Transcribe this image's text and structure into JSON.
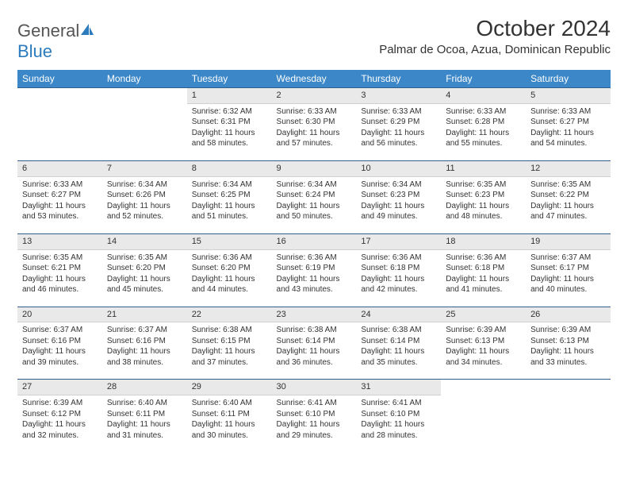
{
  "brand": {
    "name_part1": "General",
    "name_part2": "Blue"
  },
  "title": "October 2024",
  "location": "Palmar de Ocoa, Azua, Dominican Republic",
  "colors": {
    "header_bg": "#3b87c8",
    "header_text": "#ffffff",
    "daynum_bg": "#e9e9e9",
    "row_border": "#2f5f8a",
    "logo_blue": "#2b7bbd"
  },
  "weekdays": [
    "Sunday",
    "Monday",
    "Tuesday",
    "Wednesday",
    "Thursday",
    "Friday",
    "Saturday"
  ],
  "weeks": [
    [
      null,
      null,
      {
        "n": "1",
        "sunrise": "6:32 AM",
        "sunset": "6:31 PM",
        "daylight": "11 hours and 58 minutes."
      },
      {
        "n": "2",
        "sunrise": "6:33 AM",
        "sunset": "6:30 PM",
        "daylight": "11 hours and 57 minutes."
      },
      {
        "n": "3",
        "sunrise": "6:33 AM",
        "sunset": "6:29 PM",
        "daylight": "11 hours and 56 minutes."
      },
      {
        "n": "4",
        "sunrise": "6:33 AM",
        "sunset": "6:28 PM",
        "daylight": "11 hours and 55 minutes."
      },
      {
        "n": "5",
        "sunrise": "6:33 AM",
        "sunset": "6:27 PM",
        "daylight": "11 hours and 54 minutes."
      }
    ],
    [
      {
        "n": "6",
        "sunrise": "6:33 AM",
        "sunset": "6:27 PM",
        "daylight": "11 hours and 53 minutes."
      },
      {
        "n": "7",
        "sunrise": "6:34 AM",
        "sunset": "6:26 PM",
        "daylight": "11 hours and 52 minutes."
      },
      {
        "n": "8",
        "sunrise": "6:34 AM",
        "sunset": "6:25 PM",
        "daylight": "11 hours and 51 minutes."
      },
      {
        "n": "9",
        "sunrise": "6:34 AM",
        "sunset": "6:24 PM",
        "daylight": "11 hours and 50 minutes."
      },
      {
        "n": "10",
        "sunrise": "6:34 AM",
        "sunset": "6:23 PM",
        "daylight": "11 hours and 49 minutes."
      },
      {
        "n": "11",
        "sunrise": "6:35 AM",
        "sunset": "6:23 PM",
        "daylight": "11 hours and 48 minutes."
      },
      {
        "n": "12",
        "sunrise": "6:35 AM",
        "sunset": "6:22 PM",
        "daylight": "11 hours and 47 minutes."
      }
    ],
    [
      {
        "n": "13",
        "sunrise": "6:35 AM",
        "sunset": "6:21 PM",
        "daylight": "11 hours and 46 minutes."
      },
      {
        "n": "14",
        "sunrise": "6:35 AM",
        "sunset": "6:20 PM",
        "daylight": "11 hours and 45 minutes."
      },
      {
        "n": "15",
        "sunrise": "6:36 AM",
        "sunset": "6:20 PM",
        "daylight": "11 hours and 44 minutes."
      },
      {
        "n": "16",
        "sunrise": "6:36 AM",
        "sunset": "6:19 PM",
        "daylight": "11 hours and 43 minutes."
      },
      {
        "n": "17",
        "sunrise": "6:36 AM",
        "sunset": "6:18 PM",
        "daylight": "11 hours and 42 minutes."
      },
      {
        "n": "18",
        "sunrise": "6:36 AM",
        "sunset": "6:18 PM",
        "daylight": "11 hours and 41 minutes."
      },
      {
        "n": "19",
        "sunrise": "6:37 AM",
        "sunset": "6:17 PM",
        "daylight": "11 hours and 40 minutes."
      }
    ],
    [
      {
        "n": "20",
        "sunrise": "6:37 AM",
        "sunset": "6:16 PM",
        "daylight": "11 hours and 39 minutes."
      },
      {
        "n": "21",
        "sunrise": "6:37 AM",
        "sunset": "6:16 PM",
        "daylight": "11 hours and 38 minutes."
      },
      {
        "n": "22",
        "sunrise": "6:38 AM",
        "sunset": "6:15 PM",
        "daylight": "11 hours and 37 minutes."
      },
      {
        "n": "23",
        "sunrise": "6:38 AM",
        "sunset": "6:14 PM",
        "daylight": "11 hours and 36 minutes."
      },
      {
        "n": "24",
        "sunrise": "6:38 AM",
        "sunset": "6:14 PM",
        "daylight": "11 hours and 35 minutes."
      },
      {
        "n": "25",
        "sunrise": "6:39 AM",
        "sunset": "6:13 PM",
        "daylight": "11 hours and 34 minutes."
      },
      {
        "n": "26",
        "sunrise": "6:39 AM",
        "sunset": "6:13 PM",
        "daylight": "11 hours and 33 minutes."
      }
    ],
    [
      {
        "n": "27",
        "sunrise": "6:39 AM",
        "sunset": "6:12 PM",
        "daylight": "11 hours and 32 minutes."
      },
      {
        "n": "28",
        "sunrise": "6:40 AM",
        "sunset": "6:11 PM",
        "daylight": "11 hours and 31 minutes."
      },
      {
        "n": "29",
        "sunrise": "6:40 AM",
        "sunset": "6:11 PM",
        "daylight": "11 hours and 30 minutes."
      },
      {
        "n": "30",
        "sunrise": "6:41 AM",
        "sunset": "6:10 PM",
        "daylight": "11 hours and 29 minutes."
      },
      {
        "n": "31",
        "sunrise": "6:41 AM",
        "sunset": "6:10 PM",
        "daylight": "11 hours and 28 minutes."
      },
      null,
      null
    ]
  ],
  "labels": {
    "sunrise": "Sunrise:",
    "sunset": "Sunset:",
    "daylight": "Daylight:"
  }
}
